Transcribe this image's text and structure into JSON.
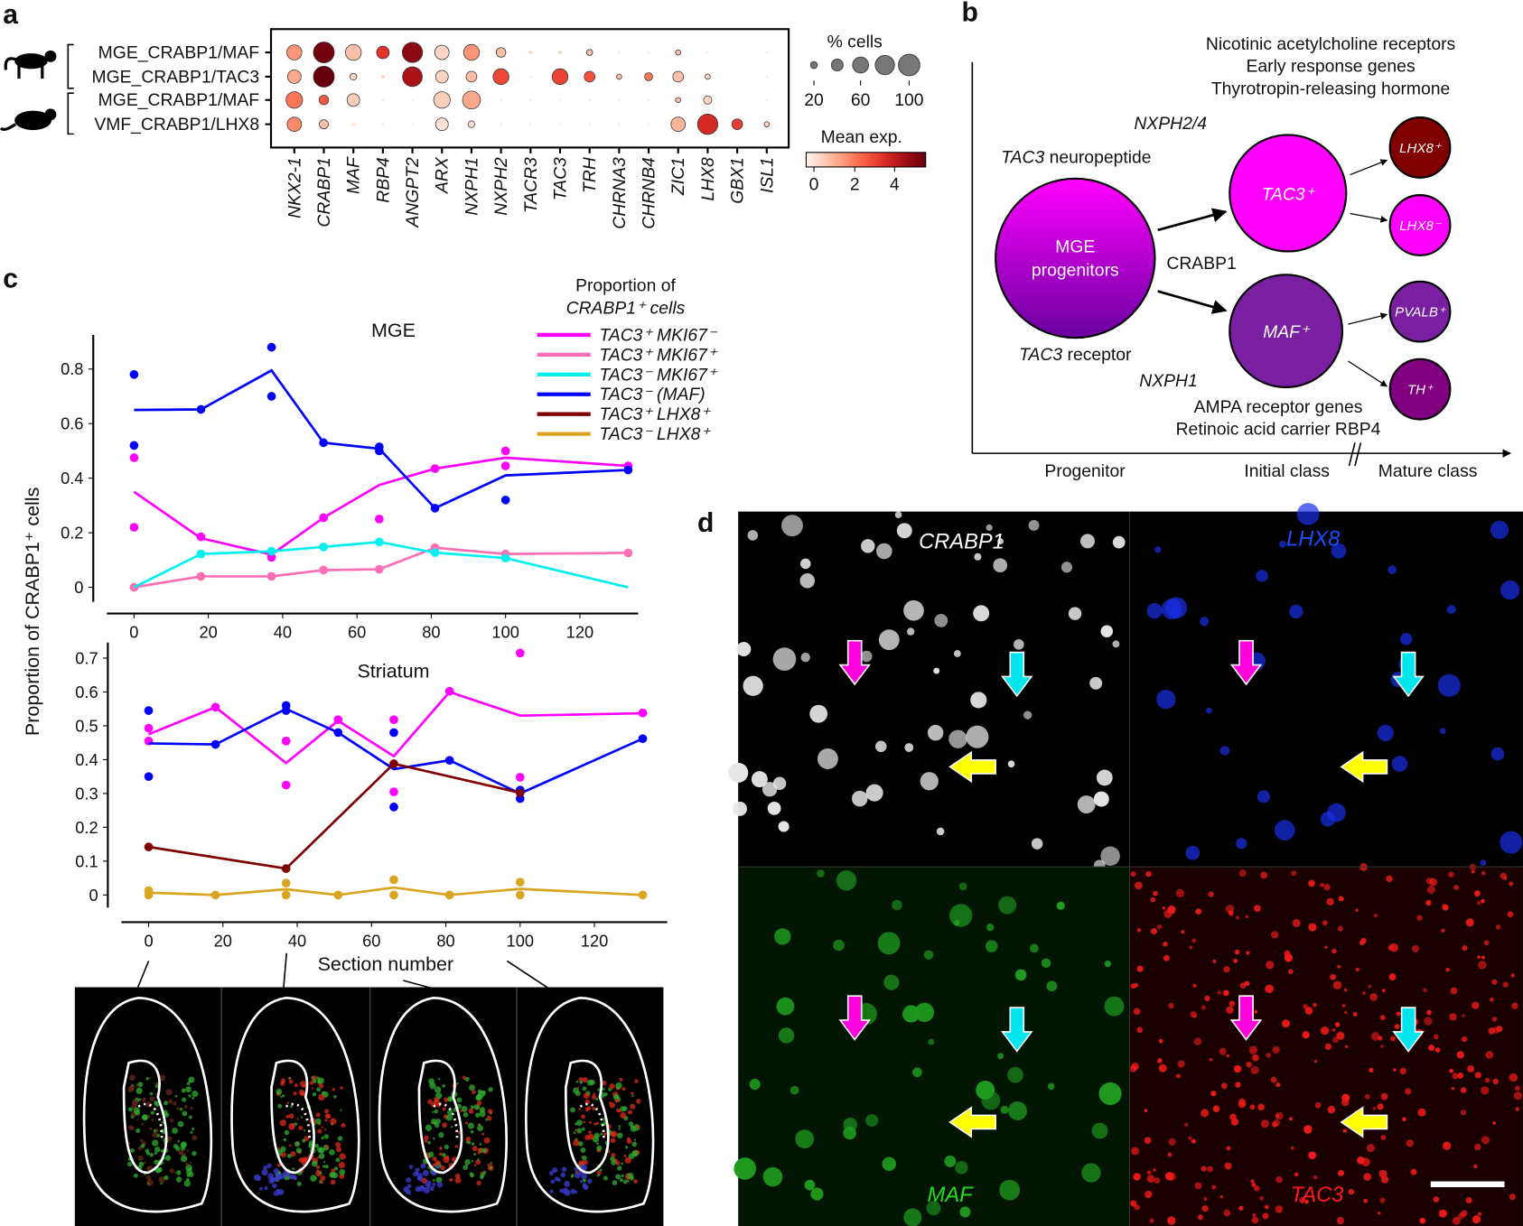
{
  "panels": {
    "a": "a",
    "b": "b",
    "c": "c",
    "d": "d"
  },
  "chart_data": [
    {
      "type": "dot-heatmap",
      "rows": [
        "MGE_CRABP1/MAF",
        "MGE_CRABP1/TAC3",
        "MGE_CRABP1/MAF",
        "VMF_CRABP1/LHX8"
      ],
      "row_species": [
        "monkey",
        "monkey",
        "mouse",
        "mouse"
      ],
      "genes": [
        "NKX2-1",
        "CRABP1",
        "MAF",
        "RBP4",
        "ANGPT2",
        "ARX",
        "NXPH1",
        "NXPH2",
        "TACR3",
        "TAC3",
        "TRH",
        "CHRNA3",
        "CHRNB4",
        "ZIC1",
        "LHX8",
        "GBX1",
        "ISL1"
      ],
      "pct_cells": [
        [
          50,
          95,
          55,
          35,
          90,
          45,
          55,
          20,
          3,
          3,
          8,
          1,
          1,
          6,
          1,
          0,
          1
        ],
        [
          40,
          95,
          10,
          3,
          85,
          35,
          25,
          55,
          1,
          55,
          25,
          6,
          14,
          25,
          6,
          0,
          1
        ],
        [
          60,
          20,
          35,
          1,
          1,
          60,
          70,
          1,
          1,
          1,
          1,
          1,
          1,
          6,
          15,
          0,
          1
        ],
        [
          45,
          18,
          3,
          1,
          1,
          35,
          10,
          1,
          1,
          1,
          1,
          1,
          1,
          45,
          90,
          25,
          6
        ]
      ],
      "mean_exp": [
        [
          1.5,
          5.3,
          0.8,
          3.2,
          4.8,
          0.5,
          1.5,
          0.8,
          0.5,
          0.5,
          0.8,
          0.3,
          0.3,
          0.8,
          0.3,
          0,
          0.3
        ],
        [
          1.2,
          5.5,
          0.5,
          0.5,
          4.3,
          0.5,
          0.9,
          2.8,
          0.3,
          2.9,
          2.6,
          0.8,
          2.0,
          0.8,
          0.5,
          0,
          0.3
        ],
        [
          2.0,
          2.5,
          0.6,
          0.3,
          0.3,
          0.6,
          1.2,
          0.3,
          0.3,
          0.3,
          0.3,
          0.3,
          0.3,
          0.8,
          0.5,
          0,
          0.3
        ],
        [
          1.7,
          0.8,
          0.3,
          0.3,
          0.3,
          0.3,
          0.4,
          0.3,
          0.3,
          0.3,
          0.3,
          0.3,
          0.3,
          1.0,
          3.5,
          3.0,
          0.5
        ]
      ],
      "size_legend": {
        "title": "% cells",
        "ticks": [
          "20",
          "60",
          "100"
        ],
        "values": [
          10,
          30,
          55,
          80,
          100
        ]
      },
      "color_legend": {
        "title": "Mean exp.",
        "ticks": [
          "0",
          "2",
          "4"
        ],
        "range": [
          0,
          5.5
        ],
        "colors": [
          "#fff5f0",
          "#fcae91",
          "#fb6a4a",
          "#de2d26",
          "#a50f15",
          "#67000d"
        ]
      }
    },
    {
      "type": "line",
      "title": "MGE",
      "xlim": [
        0,
        135
      ],
      "ylim": [
        0,
        0.9
      ],
      "xticks": [
        "0",
        "20",
        "40",
        "60",
        "80",
        "100",
        "120"
      ],
      "yticks": [
        "0",
        "0.2",
        "0.4",
        "0.6",
        "0.8"
      ],
      "series": [
        {
          "name": "TAC3⁺ MKI67⁻",
          "color": "#ff00ff",
          "line": [
            [
              0,
              0.35
            ],
            [
              18,
              0.18
            ],
            [
              37,
              0.12
            ],
            [
              51,
              0.255
            ],
            [
              66,
              0.375
            ],
            [
              81,
              0.435
            ],
            [
              100,
              0.475
            ],
            [
              133,
              0.445
            ]
          ],
          "points": [
            [
              0,
              0.475
            ],
            [
              0,
              0.22
            ],
            [
              18,
              0.185
            ],
            [
              37,
              0.11
            ],
            [
              51,
              0.255
            ],
            [
              66,
              0.25
            ],
            [
              81,
              0.435
            ],
            [
              100,
              0.5
            ],
            [
              100,
              0.445
            ],
            [
              133,
              0.445
            ]
          ]
        },
        {
          "name": "TAC3⁺ MKI67⁺",
          "color": "#ff6eb4",
          "line": [
            [
              0,
              0
            ],
            [
              18,
              0.04
            ],
            [
              37,
              0.04
            ],
            [
              51,
              0.063
            ],
            [
              66,
              0.066
            ],
            [
              81,
              0.145
            ],
            [
              100,
              0.122
            ],
            [
              133,
              0.126
            ]
          ],
          "points": [
            [
              0,
              0
            ],
            [
              18,
              0.04
            ],
            [
              37,
              0.04
            ],
            [
              51,
              0.063
            ],
            [
              66,
              0.066
            ],
            [
              81,
              0.145
            ],
            [
              100,
              0.122
            ],
            [
              133,
              0.126
            ]
          ]
        },
        {
          "name": "TAC3⁻ MKI67⁺",
          "color": "#00f0f0",
          "line": [
            [
              0,
              0
            ],
            [
              18,
              0.122
            ],
            [
              37,
              0.132
            ],
            [
              51,
              0.148
            ],
            [
              66,
              0.166
            ],
            [
              81,
              0.127
            ],
            [
              100,
              0.107
            ],
            [
              133,
              0
            ]
          ],
          "points": [
            [
              18,
              0.122
            ],
            [
              37,
              0.132
            ],
            [
              51,
              0.148
            ],
            [
              66,
              0.166
            ],
            [
              81,
              0.127
            ],
            [
              100,
              0.107
            ]
          ]
        },
        {
          "name": "TAC3⁻ (MAF)",
          "color": "#0000ff",
          "line": [
            [
              0,
              0.65
            ],
            [
              18,
              0.652
            ],
            [
              37,
              0.795
            ],
            [
              51,
              0.53
            ],
            [
              66,
              0.508
            ],
            [
              81,
              0.29
            ],
            [
              100,
              0.41
            ],
            [
              133,
              0.43
            ]
          ],
          "points": [
            [
              0,
              0.78
            ],
            [
              0,
              0.52
            ],
            [
              18,
              0.652
            ],
            [
              37,
              0.88
            ],
            [
              37,
              0.7
            ],
            [
              51,
              0.53
            ],
            [
              66,
              0.515
            ],
            [
              66,
              0.5
            ],
            [
              81,
              0.29
            ],
            [
              100,
              0.32
            ],
            [
              133,
              0.43
            ]
          ]
        }
      ]
    },
    {
      "type": "line",
      "title": "Striatum",
      "xlabel": "Section number",
      "ylabel": "Proportion of CRABP1⁺ cells",
      "xlim": [
        0,
        135
      ],
      "ylim": [
        0,
        0.75
      ],
      "xticks": [
        "0",
        "20",
        "40",
        "60",
        "80",
        "100",
        "120"
      ],
      "yticks": [
        "0",
        "0.1",
        "0.2",
        "0.3",
        "0.4",
        "0.5",
        "0.6",
        "0.7"
      ],
      "series": [
        {
          "name": "TAC3⁺ MKI67⁻",
          "color": "#ff00ff",
          "line": [
            [
              0,
              0.475
            ],
            [
              18,
              0.555
            ],
            [
              37,
              0.39
            ],
            [
              51,
              0.515
            ],
            [
              66,
              0.41
            ],
            [
              81,
              0.6
            ],
            [
              100,
              0.53
            ],
            [
              133,
              0.537
            ]
          ],
          "points": [
            [
              0,
              0.493
            ],
            [
              0,
              0.455
            ],
            [
              18,
              0.555
            ],
            [
              37,
              0.455
            ],
            [
              37,
              0.325
            ],
            [
              51,
              0.518
            ],
            [
              66,
              0.518
            ],
            [
              66,
              0.305
            ],
            [
              81,
              0.602
            ],
            [
              100,
              0.715
            ],
            [
              100,
              0.348
            ],
            [
              133,
              0.538
            ]
          ]
        },
        {
          "name": "TAC3⁻ (MAF)",
          "color": "#0000ff",
          "line": [
            [
              0,
              0.448
            ],
            [
              18,
              0.445
            ],
            [
              37,
              0.55
            ],
            [
              51,
              0.48
            ],
            [
              66,
              0.372
            ],
            [
              81,
              0.398
            ],
            [
              100,
              0.3
            ],
            [
              133,
              0.462
            ]
          ],
          "points": [
            [
              0,
              0.545
            ],
            [
              0,
              0.35
            ],
            [
              18,
              0.445
            ],
            [
              37,
              0.56
            ],
            [
              37,
              0.545
            ],
            [
              51,
              0.48
            ],
            [
              66,
              0.48
            ],
            [
              66,
              0.26
            ],
            [
              81,
              0.398
            ],
            [
              100,
              0.31
            ],
            [
              100,
              0.285
            ],
            [
              133,
              0.462
            ]
          ]
        },
        {
          "name": "TAC3⁺ LHX8⁺",
          "color": "#800000",
          "line": [
            [
              0,
              0.142
            ],
            [
              37,
              0.078
            ],
            [
              66,
              0.388
            ],
            [
              100,
              0.302
            ]
          ],
          "points": [
            [
              0,
              0.142
            ],
            [
              37,
              0.078
            ],
            [
              66,
              0.388
            ],
            [
              100,
              0.302
            ]
          ]
        },
        {
          "name": "TAC3⁻ LHX8⁺",
          "color": "#daa520",
          "line": [
            [
              0,
              0.007
            ],
            [
              18,
              0
            ],
            [
              37,
              0.017
            ],
            [
              51,
              0
            ],
            [
              66,
              0.022
            ],
            [
              81,
              0
            ],
            [
              100,
              0.018
            ],
            [
              133,
              0
            ]
          ],
          "points": [
            [
              0,
              0.013
            ],
            [
              0,
              0
            ],
            [
              18,
              0
            ],
            [
              37,
              0.035
            ],
            [
              37,
              0
            ],
            [
              51,
              0
            ],
            [
              66,
              0.045
            ],
            [
              66,
              0
            ],
            [
              81,
              0
            ],
            [
              100,
              0.038
            ],
            [
              100,
              0
            ],
            [
              133,
              0
            ]
          ]
        }
      ]
    }
  ],
  "legend_c": {
    "title_1": "Proportion of",
    "title_2": "CRABP1⁺ cells",
    "items": [
      {
        "label": "TAC3⁺ MKI67⁻",
        "color": "#ff00ff"
      },
      {
        "label": "TAC3⁺ MKI67⁺",
        "color": "#ff6eb4"
      },
      {
        "label": "TAC3⁻ MKI67⁺",
        "color": "#00f0f0"
      },
      {
        "label": "TAC3⁻ (MAF)",
        "color": "#0000ff"
      },
      {
        "label": "TAC3⁺ LHX8⁺",
        "color": "#800000"
      },
      {
        "label": "TAC3⁻ LHX8⁺",
        "color": "#daa520"
      }
    ]
  },
  "panel_b": {
    "top_notes": [
      "Nicotinic acetylcholine receptors",
      "Early response genes",
      "Thyrotropin-releasing hormone"
    ],
    "nxph24": "NXPH2/4",
    "tac3_neuropeptide_gene": "TAC3",
    "tac3_neuropeptide_rest": " neuropeptide",
    "progenitor_1": "MGE",
    "progenitor_2": "progenitors",
    "crabp1": "CRABP1",
    "tac3_receptor_gene": "TAC3",
    "tac3_receptor_rest": " receptor",
    "nxph1": "NXPH1",
    "bottom_notes": [
      "AMPA receptor genes",
      "Retinoic acid carrier RBP4"
    ],
    "initial": [
      {
        "label": "TAC3⁺",
        "color": "#ff00ff"
      },
      {
        "label": "MAF⁺",
        "color": "#7a1fa2"
      }
    ],
    "mature": [
      {
        "label": "LHX8⁺",
        "color": "#800000"
      },
      {
        "label": "LHX8⁻",
        "color": "#ff00ff"
      },
      {
        "label": "PVALB⁺",
        "color": "#7a1fa2"
      },
      {
        "label": "TH⁺",
        "color": "#800080"
      }
    ],
    "axis_labels": [
      "Progenitor",
      "Initial class",
      "Mature class"
    ]
  },
  "panel_d": {
    "channels": [
      {
        "label": "CRABP1",
        "color": "#ffffff"
      },
      {
        "label": "LHX8",
        "color": "#1a4dff"
      },
      {
        "label": "MAF",
        "color": "#22dd22"
      },
      {
        "label": "TAC3",
        "color": "#ff1a1a"
      }
    ],
    "arrow_colors": [
      "#ff00dd",
      "#00e5ee",
      "#ffff00"
    ]
  }
}
